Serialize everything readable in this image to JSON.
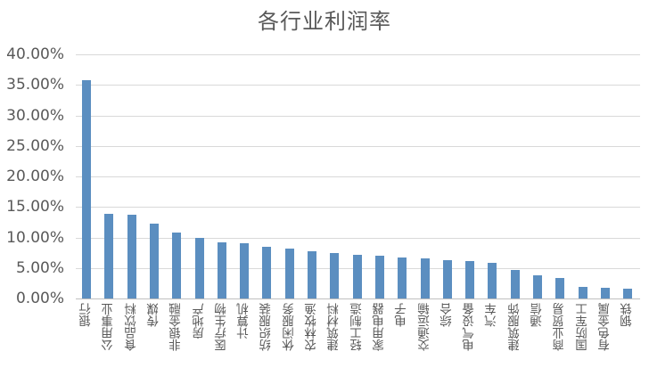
{
  "chart_data": {
    "type": "bar",
    "title": "各行业利润率",
    "xlabel": "",
    "ylabel": "",
    "ylim": [
      0,
      40
    ],
    "yticks": [
      "0.00%",
      "5.00%",
      "10.00%",
      "15.00%",
      "20.00%",
      "25.00%",
      "30.00%",
      "35.00%",
      "40.00%"
    ],
    "grid": true,
    "legend": null,
    "bar_color": "#5b8ec0",
    "categories": [
      "银行",
      "公用事业",
      "食品饮料",
      "传媒",
      "非银金融",
      "房地产",
      "医疗生物",
      "计算机",
      "纺织服装",
      "休闲服务",
      "农林牧渔",
      "建筑材料",
      "轻工制造",
      "家用电器",
      "电子",
      "交通运输",
      "综合",
      "电气设备",
      "汽车",
      "建筑服饰",
      "通信",
      "商业贸易",
      "国防军工",
      "有色金属",
      "钢铁"
    ],
    "values": [
      35.8,
      13.9,
      13.7,
      12.2,
      10.8,
      10.0,
      9.2,
      9.0,
      8.4,
      8.2,
      7.7,
      7.4,
      7.2,
      7.0,
      6.7,
      6.6,
      6.3,
      6.1,
      5.9,
      4.7,
      3.8,
      3.4,
      1.9,
      1.7,
      1.6
    ],
    "unit": "%"
  }
}
